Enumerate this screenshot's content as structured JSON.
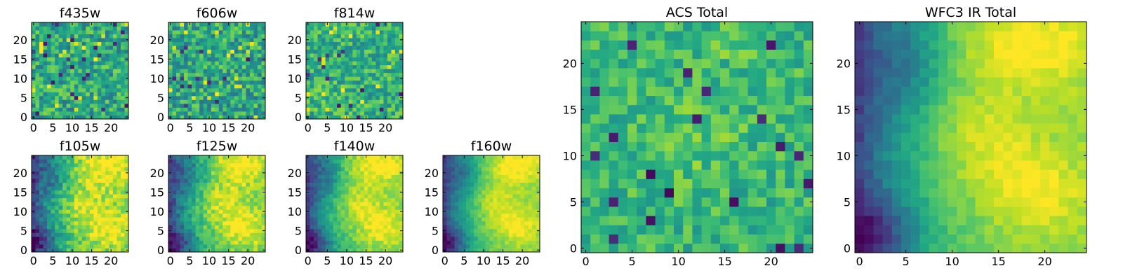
{
  "chart_data": [
    {
      "type": "heatmap",
      "title": "f435w",
      "colormap": "viridis",
      "grid_size": 25,
      "xlim": [
        0,
        24
      ],
      "ylim": [
        0,
        24
      ],
      "x_ticks": [
        0,
        5,
        10,
        15,
        20
      ],
      "y_ticks": [
        0,
        5,
        10,
        15,
        20
      ],
      "pattern": "noise",
      "seed": 11,
      "base": 0.6,
      "noise": 0.22
    },
    {
      "type": "heatmap",
      "title": "f606w",
      "colormap": "viridis",
      "grid_size": 25,
      "xlim": [
        0,
        24
      ],
      "ylim": [
        0,
        24
      ],
      "x_ticks": [
        0,
        5,
        10,
        15,
        20
      ],
      "y_ticks": [
        0,
        5,
        10,
        15,
        20
      ],
      "pattern": "noise",
      "seed": 23,
      "base": 0.6,
      "noise": 0.22
    },
    {
      "type": "heatmap",
      "title": "f814w",
      "colormap": "viridis",
      "grid_size": 25,
      "xlim": [
        0,
        24
      ],
      "ylim": [
        0,
        24
      ],
      "x_ticks": [
        0,
        5,
        10,
        15,
        20
      ],
      "y_ticks": [
        0,
        5,
        10,
        15,
        20
      ],
      "pattern": "noise",
      "seed": 37,
      "base": 0.64,
      "noise": 0.2
    },
    {
      "type": "heatmap",
      "title": "f105w",
      "colormap": "viridis",
      "grid_size": 25,
      "xlim": [
        0,
        24
      ],
      "ylim": [
        0,
        24
      ],
      "x_ticks": [
        0,
        5,
        10,
        15,
        20
      ],
      "y_ticks": [
        0,
        5,
        10,
        15,
        20
      ],
      "pattern": "smooth",
      "seed": 41,
      "noise": 0.13
    },
    {
      "type": "heatmap",
      "title": "f125w",
      "colormap": "viridis",
      "grid_size": 25,
      "xlim": [
        0,
        24
      ],
      "ylim": [
        0,
        24
      ],
      "x_ticks": [
        0,
        5,
        10,
        15,
        20
      ],
      "y_ticks": [
        0,
        5,
        10,
        15,
        20
      ],
      "pattern": "smooth",
      "seed": 53,
      "noise": 0.11
    },
    {
      "type": "heatmap",
      "title": "f140w",
      "colormap": "viridis",
      "grid_size": 25,
      "xlim": [
        0,
        24
      ],
      "ylim": [
        0,
        24
      ],
      "x_ticks": [
        0,
        5,
        10,
        15,
        20
      ],
      "y_ticks": [
        0,
        5,
        10,
        15,
        20
      ],
      "pattern": "smooth",
      "seed": 67,
      "noise": 0.08
    },
    {
      "type": "heatmap",
      "title": "f160w",
      "colormap": "viridis",
      "grid_size": 25,
      "xlim": [
        0,
        24
      ],
      "ylim": [
        0,
        24
      ],
      "x_ticks": [
        0,
        5,
        10,
        15,
        20
      ],
      "y_ticks": [
        0,
        5,
        10,
        15,
        20
      ],
      "pattern": "smooth",
      "seed": 71,
      "noise": 0.06
    },
    {
      "type": "heatmap",
      "title": "ACS Total",
      "colormap": "viridis",
      "grid_size": 25,
      "xlim": [
        0,
        24
      ],
      "ylim": [
        0,
        24
      ],
      "x_ticks": [
        0,
        5,
        10,
        15,
        20
      ],
      "y_ticks": [
        0,
        5,
        10,
        15,
        20
      ],
      "pattern": "acs",
      "seed": 83,
      "base": 0.66,
      "noise": 0.15
    },
    {
      "type": "heatmap",
      "title": "WFC3 IR Total",
      "colormap": "viridis",
      "grid_size": 25,
      "xlim": [
        0,
        24
      ],
      "ylim": [
        0,
        24
      ],
      "x_ticks": [
        0,
        5,
        10,
        15,
        20
      ],
      "y_ticks": [
        0,
        5,
        10,
        15,
        20
      ],
      "pattern": "smooth",
      "seed": 97,
      "noise": 0.05
    }
  ]
}
